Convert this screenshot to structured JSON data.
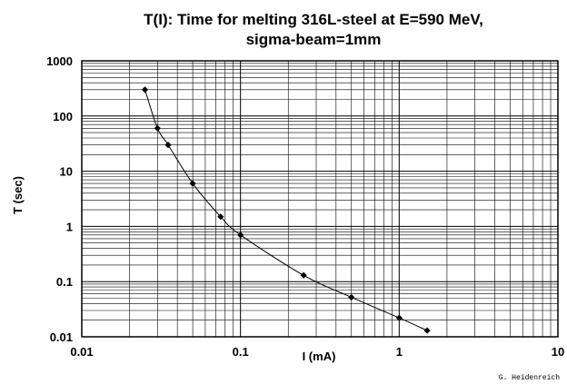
{
  "chart_data": {
    "type": "scatter",
    "title_line1": "T(I): Time for melting 316L-steel at E=590 MeV,",
    "title_line2": "sigma-beam=1mm",
    "xlabel": "I (mA)",
    "ylabel": "T (sec)",
    "xscale": "log",
    "yscale": "log",
    "xlim": [
      0.01,
      10
    ],
    "ylim": [
      0.01,
      1000
    ],
    "xticks": [
      "0.01",
      "0.1",
      "1",
      "10"
    ],
    "yticks": [
      "1000",
      "100",
      "10",
      "1",
      "0.1",
      "0.01"
    ],
    "grid": true,
    "series": [
      {
        "x": [
          0.025,
          0.03,
          0.035,
          0.05,
          0.075,
          0.1,
          0.25,
          0.5,
          1.0,
          1.5
        ],
        "y": [
          300,
          60,
          30,
          6,
          1.5,
          0.7,
          0.13,
          0.052,
          0.022,
          0.013
        ]
      }
    ],
    "credit": "G. Heidenreich"
  }
}
